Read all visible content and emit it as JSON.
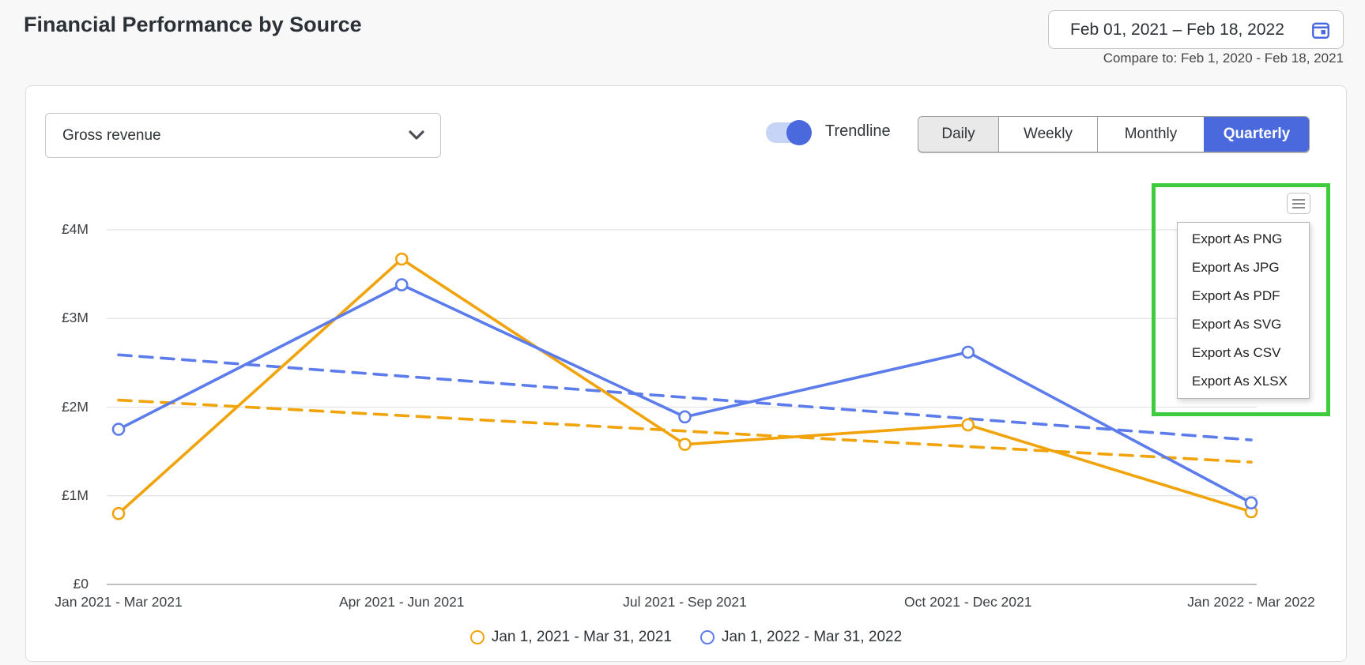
{
  "header": {
    "title": "Financial Performance by Source",
    "date_range": "Feb 01, 2021 – Feb 18, 2022",
    "compare_to": "Compare to: Feb 1, 2020 - Feb 18, 2021"
  },
  "controls": {
    "metric_select": {
      "value": "Gross revenue"
    },
    "trendline_toggle": {
      "label": "Trendline",
      "state": "on"
    },
    "granularity_tabs": [
      {
        "label": "Daily",
        "selected": false
      },
      {
        "label": "Weekly",
        "selected": false
      },
      {
        "label": "Monthly",
        "selected": false
      },
      {
        "label": "Quarterly",
        "selected": true
      }
    ]
  },
  "export_menu": {
    "items": [
      "Export As PNG",
      "Export As JPG",
      "Export As PDF",
      "Export As SVG",
      "Export As CSV",
      "Export As XLSX"
    ]
  },
  "icons": {
    "date_picker": "calendar-icon",
    "metric_dropdown": "chevron-down-icon",
    "chart_menu": "hamburger-menu-icon"
  },
  "colors": {
    "accent_blue": "#4a69dd",
    "series_orange": "#f0a30a",
    "series_blue": "#5b7cea",
    "toggle_track": "#c6d5f7",
    "annotation_green": "#3ecb3e",
    "gridline": "#e3e3e3",
    "axis_baseline": "#9b9b9b"
  },
  "chart_data": {
    "type": "line",
    "y_unit": "GBP millions",
    "categories": [
      "Jan 2021 - Mar 2021",
      "Apr 2021 - Jun 2021",
      "Jul 2021 - Sep 2021",
      "Oct 2021 - Dec 2021",
      "Jan 2022 - Mar 2022"
    ],
    "series": [
      {
        "name": "Jan 1, 2021 - Mar 31, 2021",
        "color": "#f0a30a",
        "values": [
          0.8,
          3.67,
          1.58,
          1.8,
          0.82
        ],
        "trendline": {
          "start": 2.08,
          "end": 1.38
        }
      },
      {
        "name": "Jan 1, 2022 - Mar 31, 2022",
        "color": "#5b7cea",
        "values": [
          1.75,
          3.38,
          1.89,
          2.62,
          0.92
        ],
        "trendline": {
          "start": 2.59,
          "end": 1.63
        }
      }
    ],
    "ylabel_ticks": [
      "£0",
      "£1M",
      "£2M",
      "£3M",
      "£4M"
    ],
    "ylim": [
      0,
      4
    ],
    "grid": true,
    "legend_position": "bottom",
    "trendlines_visible": true
  }
}
